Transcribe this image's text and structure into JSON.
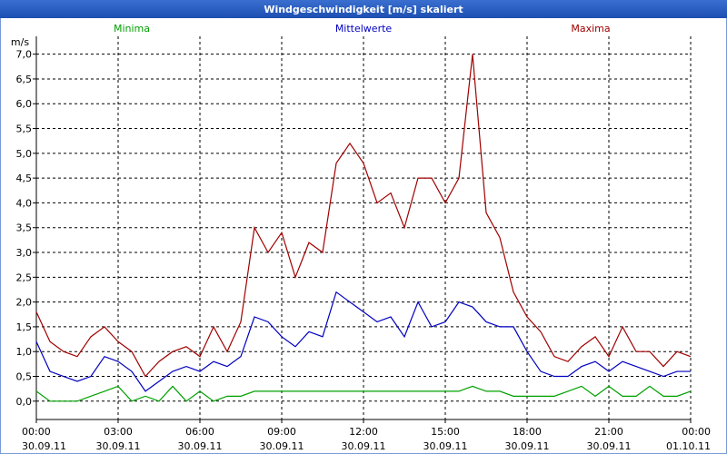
{
  "chart_data": {
    "type": "line",
    "title": "Windgeschwindigkeit [m/s] skaliert",
    "y_label": "m/s",
    "grid": true,
    "x": [
      0,
      0.5,
      1,
      1.5,
      2,
      2.5,
      3,
      3.5,
      4,
      4.5,
      5,
      5.5,
      6,
      6.5,
      7,
      7.5,
      8,
      8.5,
      9,
      9.5,
      10,
      10.5,
      11,
      11.5,
      12,
      12.5,
      13,
      13.5,
      14,
      14.5,
      15,
      15.5,
      16,
      16.5,
      17,
      17.5,
      18,
      18.5,
      19,
      19.5,
      20,
      20.5,
      21,
      21.5,
      22,
      22.5,
      23,
      23.5,
      24
    ],
    "xlim": [
      0,
      24
    ],
    "xticks": [
      {
        "value": 0,
        "label": "00:00",
        "date": "30.09.11"
      },
      {
        "value": 3,
        "label": "03:00",
        "date": "30.09.11"
      },
      {
        "value": 6,
        "label": "06:00",
        "date": "30.09.11"
      },
      {
        "value": 9,
        "label": "09:00",
        "date": "30.09.11"
      },
      {
        "value": 12,
        "label": "12:00",
        "date": "30.09.11"
      },
      {
        "value": 15,
        "label": "15:00",
        "date": "30.09.11"
      },
      {
        "value": 18,
        "label": "18:00",
        "date": "30.09.11"
      },
      {
        "value": 21,
        "label": "21:00",
        "date": "30.09.11"
      },
      {
        "value": 24,
        "label": "00:00",
        "date": "01.10.11"
      }
    ],
    "ylim": [
      -0.37,
      7.36
    ],
    "yticks": [
      {
        "value": 0,
        "label": "0,0"
      },
      {
        "value": 0.5,
        "label": "0,5"
      },
      {
        "value": 1,
        "label": "1,0"
      },
      {
        "value": 1.5,
        "label": "1,5"
      },
      {
        "value": 2,
        "label": "2,0"
      },
      {
        "value": 2.5,
        "label": "2,5"
      },
      {
        "value": 3,
        "label": "3,0"
      },
      {
        "value": 3.5,
        "label": "3,5"
      },
      {
        "value": 4,
        "label": "4,0"
      },
      {
        "value": 4.5,
        "label": "4,5"
      },
      {
        "value": 5,
        "label": "5,0"
      },
      {
        "value": 5.5,
        "label": "5,5"
      },
      {
        "value": 6,
        "label": "6,0"
      },
      {
        "value": 6.5,
        "label": "6,5"
      },
      {
        "value": 7,
        "label": "7,0"
      }
    ],
    "series": [
      {
        "name": "Minima",
        "color": "#00a000",
        "values": [
          0.2,
          0,
          0,
          0,
          0.1,
          0.2,
          0.3,
          0,
          0.1,
          0,
          0.3,
          0,
          0.2,
          0,
          0.1,
          0.1,
          0.2,
          0.2,
          0.2,
          0.2,
          0.2,
          0.2,
          0.2,
          0.2,
          0.2,
          0.2,
          0.2,
          0.2,
          0.2,
          0.2,
          0.2,
          0.2,
          0.3,
          0.2,
          0.2,
          0.1,
          0.1,
          0.1,
          0.1,
          0.2,
          0.3,
          0.1,
          0.3,
          0.1,
          0.1,
          0.3,
          0.1,
          0.1,
          0.2
        ]
      },
      {
        "name": "Mittelwerte",
        "color": "#0000c0",
        "values": [
          1.2,
          0.6,
          0.5,
          0.4,
          0.5,
          0.9,
          0.8,
          0.6,
          0.2,
          0.4,
          0.6,
          0.7,
          0.6,
          0.8,
          0.7,
          0.9,
          1.7,
          1.6,
          1.3,
          1.1,
          1.4,
          1.3,
          2.2,
          2.0,
          1.8,
          1.6,
          1.7,
          1.3,
          2.0,
          1.5,
          1.6,
          2.0,
          1.9,
          1.6,
          1.5,
          1.5,
          1.0,
          0.6,
          0.5,
          0.5,
          0.7,
          0.8,
          0.6,
          0.8,
          0.7,
          0.6,
          0.5,
          0.6,
          0.6
        ]
      },
      {
        "name": "Maxima",
        "color": "#a00000",
        "values": [
          1.8,
          1.2,
          1.0,
          0.9,
          1.3,
          1.5,
          1.2,
          1.0,
          0.5,
          0.8,
          1.0,
          1.1,
          0.9,
          1.5,
          1.0,
          1.6,
          3.5,
          3.0,
          3.4,
          2.5,
          3.2,
          3.0,
          4.8,
          5.2,
          4.8,
          4.0,
          4.2,
          3.5,
          4.5,
          4.5,
          4.0,
          4.5,
          7.0,
          3.8,
          3.3,
          2.2,
          1.7,
          1.4,
          0.9,
          0.8,
          1.1,
          1.3,
          0.9,
          1.5,
          1.0,
          1.0,
          0.7,
          1.0,
          0.9
        ]
      }
    ]
  }
}
